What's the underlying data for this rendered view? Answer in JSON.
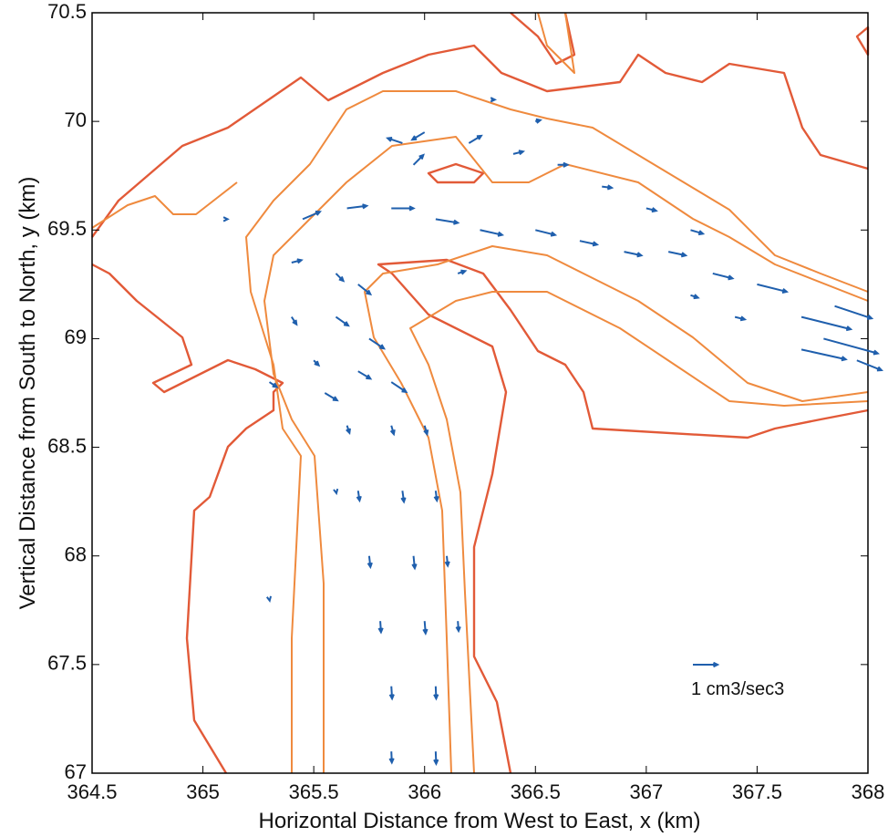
{
  "chart_data": {
    "type": "quiver",
    "xlabel": "Horizontal Distance from West to East, x (km)",
    "ylabel": "Vertical Distance from South to North, y (km)",
    "xlim": [
      364.5,
      368
    ],
    "ylim": [
      67,
      70.5
    ],
    "xticks": [
      364.5,
      365,
      365.5,
      366,
      366.5,
      367,
      367.5,
      368
    ],
    "yticks": [
      67,
      67.5,
      68,
      68.5,
      69,
      69.5,
      70,
      70.5
    ],
    "color": "#1f5fad",
    "key": {
      "value": 1,
      "label": "1 cm3/sec3"
    },
    "x": [
      365.85,
      366.05,
      365.85,
      366.05,
      365.8,
      366.0,
      366.15,
      365.75,
      365.95,
      366.1,
      365.7,
      365.9,
      366.05,
      365.65,
      365.85,
      366.0,
      365.5,
      365.7,
      365.85,
      365.4,
      365.6,
      365.75,
      365.4,
      365.6,
      365.45,
      365.65,
      365.85,
      366.05,
      366.25,
      365.9,
      366.0,
      365.95,
      366.2,
      366.4,
      366.6,
      366.8,
      366.5,
      366.7,
      366.9,
      367.1,
      367.3,
      367.0,
      367.2,
      367.5,
      367.7,
      367.8,
      367.7,
      367.85,
      367.95,
      367.4,
      367.2,
      365.3,
      365.55,
      365.7,
      366.15,
      365.1,
      365.6,
      365.3,
      366.5,
      366.3
    ],
    "y": [
      67.1,
      67.1,
      67.4,
      67.4,
      67.7,
      67.7,
      67.7,
      68.0,
      68.0,
      68.0,
      68.3,
      68.3,
      68.3,
      68.6,
      68.6,
      68.6,
      68.9,
      68.85,
      68.8,
      69.1,
      69.1,
      69.0,
      69.35,
      69.3,
      69.55,
      69.6,
      69.6,
      69.55,
      69.5,
      69.9,
      69.95,
      69.8,
      69.9,
      69.85,
      69.8,
      69.7,
      69.5,
      69.45,
      69.4,
      69.4,
      69.3,
      69.6,
      69.5,
      69.25,
      69.1,
      69.0,
      68.95,
      69.15,
      68.9,
      69.1,
      69.2,
      68.8,
      68.75,
      69.25,
      69.3,
      69.55,
      68.3,
      67.8,
      70.0,
      70.1
    ],
    "u": [
      0.02,
      0.02,
      0.03,
      0.02,
      0.03,
      0.04,
      0.03,
      0.05,
      0.05,
      0.04,
      0.06,
      0.06,
      0.05,
      0.1,
      0.1,
      0.1,
      0.2,
      0.5,
      0.6,
      0.2,
      0.5,
      0.6,
      0.4,
      0.3,
      0.7,
      0.8,
      0.9,
      0.9,
      0.9,
      -0.6,
      -0.5,
      0.4,
      0.5,
      0.4,
      0.4,
      0.4,
      0.8,
      0.7,
      0.7,
      0.7,
      0.8,
      0.4,
      0.5,
      1.2,
      2.0,
      2.2,
      1.8,
      1.5,
      1.0,
      0.4,
      0.3,
      0.3,
      0.5,
      0.5,
      0.3,
      0.1,
      0.02,
      0.01,
      0.2,
      0.15
    ],
    "v": [
      -0.45,
      -0.5,
      -0.5,
      -0.5,
      -0.45,
      -0.5,
      -0.4,
      -0.45,
      -0.5,
      -0.4,
      -0.4,
      -0.45,
      -0.4,
      -0.3,
      -0.35,
      -0.35,
      -0.2,
      -0.3,
      -0.4,
      -0.3,
      -0.35,
      -0.4,
      0.1,
      -0.3,
      0.3,
      0.1,
      0.0,
      -0.15,
      -0.2,
      0.2,
      -0.3,
      0.4,
      0.3,
      0.1,
      0.0,
      -0.05,
      -0.2,
      -0.15,
      -0.15,
      -0.15,
      -0.2,
      -0.1,
      -0.15,
      -0.3,
      -0.5,
      -0.6,
      -0.4,
      -0.5,
      -0.4,
      -0.1,
      -0.1,
      -0.2,
      -0.3,
      -0.4,
      0.1,
      0.0,
      -0.1,
      -0.05,
      0.05,
      0.0
    ]
  }
}
